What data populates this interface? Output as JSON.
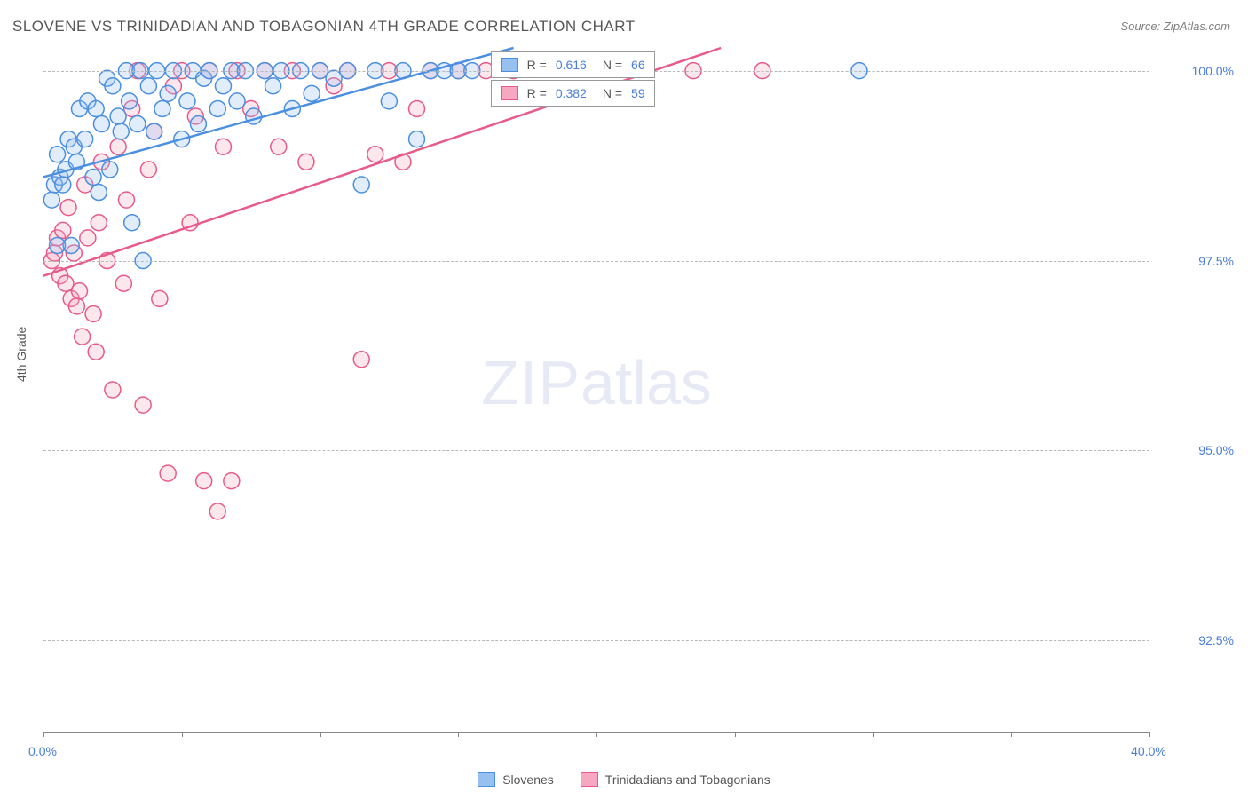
{
  "title": "SLOVENE VS TRINIDADIAN AND TOBAGONIAN 4TH GRADE CORRELATION CHART",
  "source": "Source: ZipAtlas.com",
  "ylabel": "4th Grade",
  "watermark": {
    "bold": "ZIP",
    "light": "atlas"
  },
  "chart": {
    "type": "scatter",
    "xlim": [
      0,
      40
    ],
    "ylim": [
      91.3,
      100.3
    ],
    "xticks": [
      0,
      40
    ],
    "xtick_labels": [
      "0.0%",
      "40.0%"
    ],
    "xtick_marks": [
      0,
      5,
      10,
      15,
      20,
      25,
      30,
      35,
      40
    ],
    "yticks": [
      92.5,
      95.0,
      97.5,
      100.0
    ],
    "ytick_labels": [
      "92.5%",
      "95.0%",
      "97.5%",
      "100.0%"
    ],
    "grid_color": "#b8b8b8",
    "background_color": "#ffffff",
    "axis_color": "#888888",
    "label_color": "#4a7dd6",
    "title_color": "#575757",
    "marker_radius": 9,
    "marker_stroke_width": 1.5,
    "marker_fill_opacity": 0.28,
    "trend_line_width": 2.5
  },
  "series": [
    {
      "name": "Slovenes",
      "color": "#4a8fe0",
      "fill": "#96c0ef",
      "r_label": "R =",
      "r_value": "0.616",
      "n_label": "N =",
      "n_value": "66",
      "trend": {
        "x1": 0,
        "y1": 98.6,
        "x2": 17,
        "y2": 100.3
      },
      "points": [
        [
          0.3,
          98.3
        ],
        [
          0.4,
          98.5
        ],
        [
          0.5,
          98.9
        ],
        [
          0.6,
          98.6
        ],
        [
          0.7,
          98.5
        ],
        [
          0.8,
          98.7
        ],
        [
          0.9,
          99.1
        ],
        [
          1.0,
          97.7
        ],
        [
          1.1,
          99.0
        ],
        [
          1.2,
          98.8
        ],
        [
          1.3,
          99.5
        ],
        [
          1.5,
          99.1
        ],
        [
          1.6,
          99.6
        ],
        [
          1.8,
          98.6
        ],
        [
          1.9,
          99.5
        ],
        [
          2.0,
          98.4
        ],
        [
          2.1,
          99.3
        ],
        [
          2.3,
          99.9
        ],
        [
          2.4,
          98.7
        ],
        [
          2.5,
          99.8
        ],
        [
          2.7,
          99.4
        ],
        [
          2.8,
          99.2
        ],
        [
          3.0,
          100.0
        ],
        [
          3.1,
          99.6
        ],
        [
          3.2,
          98.0
        ],
        [
          3.4,
          99.3
        ],
        [
          3.5,
          100.0
        ],
        [
          3.6,
          97.5
        ],
        [
          3.8,
          99.8
        ],
        [
          4.0,
          99.2
        ],
        [
          4.1,
          100.0
        ],
        [
          4.3,
          99.5
        ],
        [
          4.5,
          99.7
        ],
        [
          4.7,
          100.0
        ],
        [
          5.0,
          99.1
        ],
        [
          5.2,
          99.6
        ],
        [
          5.4,
          100.0
        ],
        [
          5.6,
          99.3
        ],
        [
          5.8,
          99.9
        ],
        [
          6.0,
          100.0
        ],
        [
          6.3,
          99.5
        ],
        [
          6.5,
          99.8
        ],
        [
          6.8,
          100.0
        ],
        [
          7.0,
          99.6
        ],
        [
          7.3,
          100.0
        ],
        [
          7.6,
          99.4
        ],
        [
          8.0,
          100.0
        ],
        [
          8.3,
          99.8
        ],
        [
          8.6,
          100.0
        ],
        [
          9.0,
          99.5
        ],
        [
          9.3,
          100.0
        ],
        [
          9.7,
          99.7
        ],
        [
          10.0,
          100.0
        ],
        [
          10.5,
          99.9
        ],
        [
          11.0,
          100.0
        ],
        [
          11.5,
          98.5
        ],
        [
          12.0,
          100.0
        ],
        [
          12.5,
          99.6
        ],
        [
          13.0,
          100.0
        ],
        [
          13.5,
          99.1
        ],
        [
          14.0,
          100.0
        ],
        [
          14.5,
          100.0
        ],
        [
          15.0,
          100.0
        ],
        [
          15.5,
          100.0
        ],
        [
          29.5,
          100.0
        ],
        [
          0.5,
          97.7
        ]
      ]
    },
    {
      "name": "Trinidadians and Tobagonians",
      "color": "#e85a8a",
      "fill": "#f5a8c0",
      "r_label": "R =",
      "r_value": "0.382",
      "n_label": "N =",
      "n_value": "59",
      "trend": {
        "x1": 0,
        "y1": 97.3,
        "x2": 24.5,
        "y2": 100.3
      },
      "points": [
        [
          0.3,
          97.5
        ],
        [
          0.4,
          97.6
        ],
        [
          0.5,
          97.8
        ],
        [
          0.6,
          97.3
        ],
        [
          0.7,
          97.9
        ],
        [
          0.8,
          97.2
        ],
        [
          0.9,
          98.2
        ],
        [
          1.0,
          97.0
        ],
        [
          1.1,
          97.6
        ],
        [
          1.2,
          96.9
        ],
        [
          1.3,
          97.1
        ],
        [
          1.4,
          96.5
        ],
        [
          1.5,
          98.5
        ],
        [
          1.6,
          97.8
        ],
        [
          1.8,
          96.8
        ],
        [
          1.9,
          96.3
        ],
        [
          2.0,
          98.0
        ],
        [
          2.1,
          98.8
        ],
        [
          2.3,
          97.5
        ],
        [
          2.5,
          95.8
        ],
        [
          2.7,
          99.0
        ],
        [
          2.9,
          97.2
        ],
        [
          3.0,
          98.3
        ],
        [
          3.2,
          99.5
        ],
        [
          3.4,
          100.0
        ],
        [
          3.6,
          95.6
        ],
        [
          3.8,
          98.7
        ],
        [
          4.0,
          99.2
        ],
        [
          4.2,
          97.0
        ],
        [
          4.5,
          94.7
        ],
        [
          4.7,
          99.8
        ],
        [
          5.0,
          100.0
        ],
        [
          5.3,
          98.0
        ],
        [
          5.5,
          99.4
        ],
        [
          5.8,
          94.6
        ],
        [
          6.0,
          100.0
        ],
        [
          6.3,
          94.2
        ],
        [
          6.5,
          99.0
        ],
        [
          6.8,
          94.6
        ],
        [
          7.0,
          100.0
        ],
        [
          7.5,
          99.5
        ],
        [
          8.0,
          100.0
        ],
        [
          8.5,
          99.0
        ],
        [
          9.0,
          100.0
        ],
        [
          9.5,
          98.8
        ],
        [
          10.0,
          100.0
        ],
        [
          10.5,
          99.8
        ],
        [
          11.0,
          100.0
        ],
        [
          11.5,
          96.2
        ],
        [
          12.0,
          98.9
        ],
        [
          12.5,
          100.0
        ],
        [
          13.0,
          98.8
        ],
        [
          13.5,
          99.5
        ],
        [
          14.0,
          100.0
        ],
        [
          15.0,
          100.0
        ],
        [
          16.0,
          100.0
        ],
        [
          17.0,
          100.0
        ],
        [
          23.5,
          100.0
        ],
        [
          26.0,
          100.0
        ]
      ]
    }
  ],
  "legend": {
    "items": [
      "Slovenes",
      "Trinidadians and Tobagonians"
    ]
  },
  "stat_box_pos": {
    "left_pct": 40.5
  }
}
